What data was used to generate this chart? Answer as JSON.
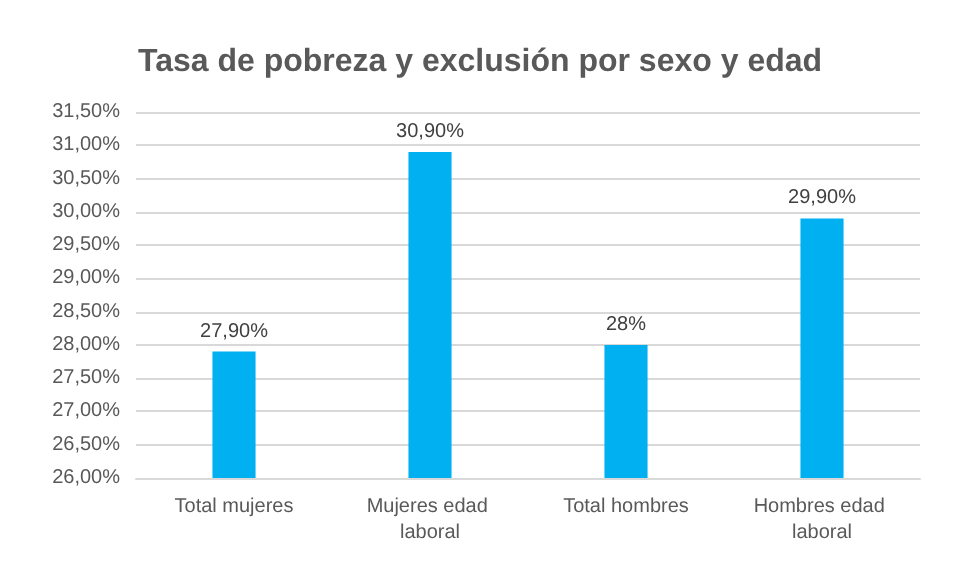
{
  "chart_data": {
    "type": "bar",
    "title": "Tasa de pobreza y exclusión por sexo y edad",
    "categories": [
      "Total mujeres",
      "Mujeres edad laboral",
      "Total hombres",
      "Hombres edad laboral"
    ],
    "values": [
      27.9,
      30.9,
      28,
      29.9
    ],
    "value_labels": [
      "27,90%",
      "30,90%",
      "28%",
      "29,90%"
    ],
    "color": "#00b0f0",
    "ylim": [
      26,
      31.5
    ],
    "yticks": [
      {
        "value": 26,
        "label": "26,00%"
      },
      {
        "value": 26.5,
        "label": "26,50%"
      },
      {
        "value": 27,
        "label": "27,00%"
      },
      {
        "value": 27.5,
        "label": "27,50%"
      },
      {
        "value": 28,
        "label": "28,00%"
      },
      {
        "value": 28.5,
        "label": "28,50%"
      },
      {
        "value": 29,
        "label": "29,00%"
      },
      {
        "value": 29.5,
        "label": "29,50%"
      },
      {
        "value": 30,
        "label": "30,00%"
      },
      {
        "value": 30.5,
        "label": "30,50%"
      },
      {
        "value": 31,
        "label": "31,00%"
      },
      {
        "value": 31.5,
        "label": "31,50%"
      }
    ],
    "grid": true
  }
}
